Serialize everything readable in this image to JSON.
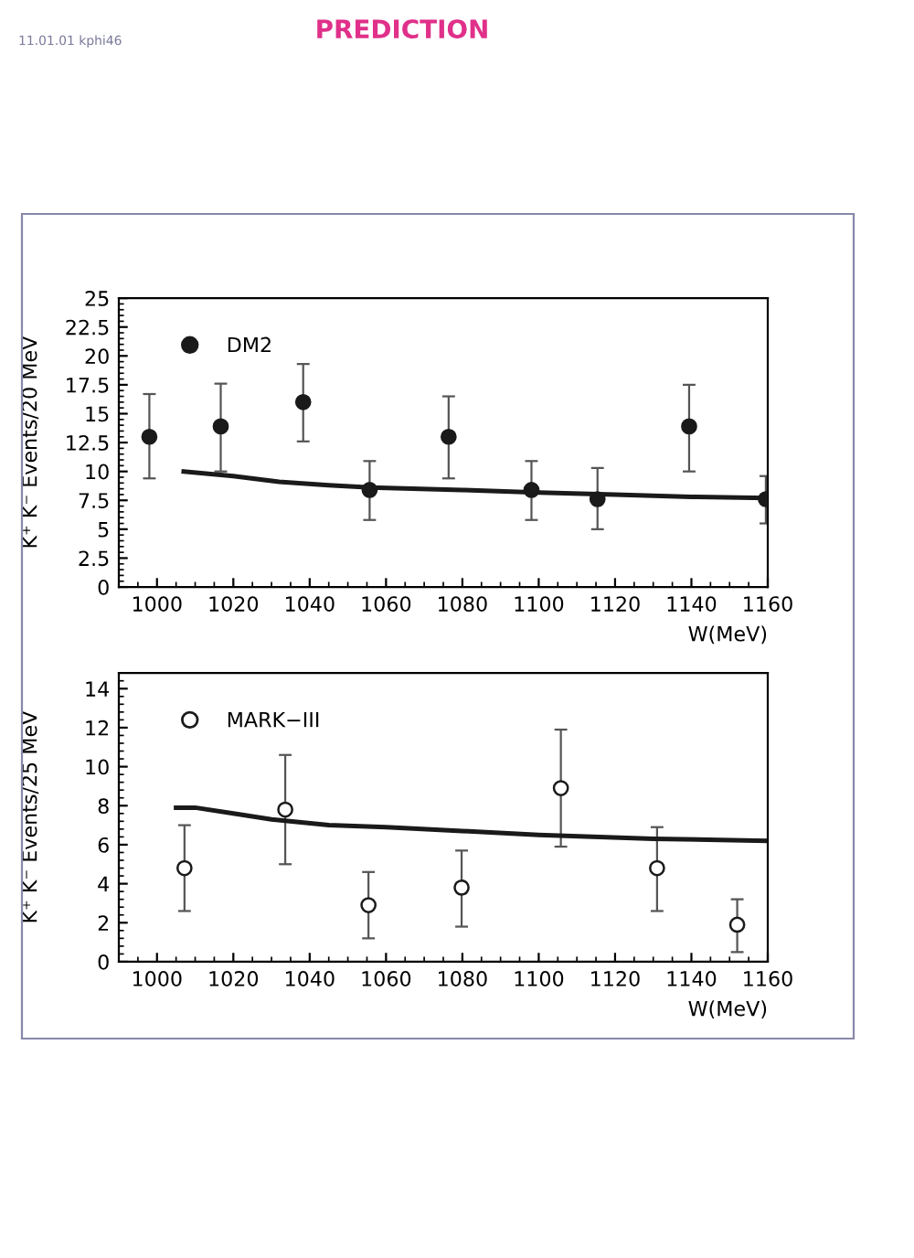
{
  "chart_data": [
    {
      "type": "scatter",
      "xlabel": "W(MeV)",
      "ylabel": "K⁺ K⁻ Events/20 MeV",
      "annotations": [
        "PREDICTION",
        "11.01.01 kphi46"
      ],
      "xlim": [
        990,
        1160
      ],
      "xticks": [
        1000,
        1020,
        1040,
        1060,
        1080,
        1100,
        1120,
        1140,
        1160
      ],
      "ylim": [
        0,
        25
      ],
      "yticks": [
        0,
        2.5,
        5,
        7.5,
        10,
        12.5,
        15,
        17.5,
        20,
        22.5,
        25
      ],
      "legend": "top left",
      "grid": false,
      "series": [
        {
          "name": "DM2",
          "color": "#1a1a1a",
          "marker": "circle",
          "x": [
            998,
            1016.7,
            1038.3,
            1055.7,
            1076.4,
            1098.1,
            1115.4,
            1139.4,
            1159.5
          ],
          "values": [
            13.0,
            13.9,
            16.0,
            8.4,
            13.0,
            8.4,
            7.6,
            13.9,
            7.6
          ],
          "errors": [
            [
              9.4,
              16.7
            ],
            [
              10.0,
              17.6
            ],
            [
              12.6,
              19.3
            ],
            [
              5.8,
              10.9
            ],
            [
              9.4,
              16.5
            ],
            [
              5.8,
              10.9
            ],
            [
              5.0,
              10.3
            ],
            [
              10.0,
              17.5
            ],
            [
              5.5,
              9.6
            ]
          ]
        },
        {
          "type": "line",
          "color": "#1a1a1a",
          "x": [
            1007,
            1020,
            1032,
            1045,
            1056,
            1080,
            1098,
            1120,
            1140,
            1160
          ],
          "values": [
            10.0,
            9.6,
            9.1,
            8.8,
            8.6,
            8.4,
            8.2,
            8.0,
            7.8,
            7.7
          ]
        }
      ]
    },
    {
      "type": "scatter",
      "xlabel": "W(MeV)",
      "ylabel": "K⁺ K⁻ Events/25 MeV",
      "xlim": [
        990,
        1160
      ],
      "xticks": [
        1000,
        1020,
        1040,
        1060,
        1080,
        1100,
        1120,
        1140,
        1160
      ],
      "ylim": [
        0,
        14.8
      ],
      "yticks": [
        0,
        2,
        4,
        6,
        8,
        10,
        12,
        14
      ],
      "legend": "top left",
      "grid": false,
      "series": [
        {
          "name": "MARK−III",
          "color": "#1a1a1a",
          "marker": "circle_open",
          "x": [
            1007.2,
            1033.6,
            1055.4,
            1079.8,
            1105.8,
            1131,
            1152
          ],
          "values": [
            4.8,
            7.8,
            2.9,
            3.8,
            8.9,
            4.8,
            1.9
          ],
          "errors": [
            [
              2.6,
              7.0
            ],
            [
              5.0,
              10.6
            ],
            [
              1.2,
              4.6
            ],
            [
              1.8,
              5.7
            ],
            [
              5.9,
              11.9
            ],
            [
              2.6,
              6.9
            ],
            [
              0.5,
              3.2
            ]
          ]
        },
        {
          "type": "line",
          "color": "#1a1a1a",
          "x": [
            1005,
            1010,
            1020,
            1030,
            1045,
            1060,
            1080,
            1100,
            1130,
            1160
          ],
          "values": [
            7.9,
            7.9,
            7.6,
            7.3,
            7.0,
            6.9,
            6.7,
            6.5,
            6.3,
            6.2
          ]
        }
      ]
    }
  ]
}
